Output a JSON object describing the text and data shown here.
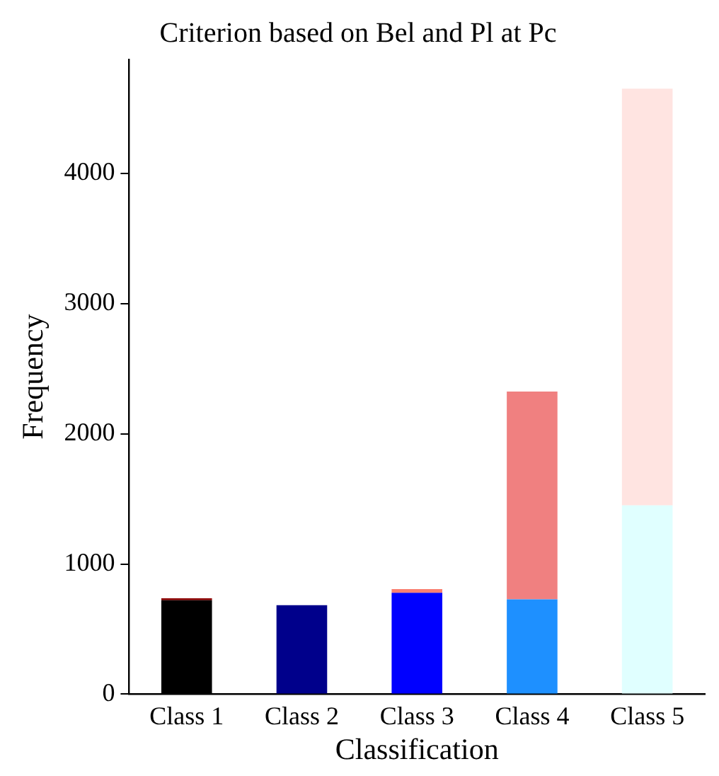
{
  "chart_data": {
    "type": "bar",
    "title": "Criterion based on Bel and Pl at Pc",
    "xlabel": "Classification",
    "ylabel": "Frequency",
    "categories": [
      "Class 1",
      "Class 2",
      "Class 3",
      "Class 4",
      "Class 5"
    ],
    "stacked": true,
    "series": [
      {
        "colors": [
          "#000000",
          "#00008b",
          "#0000ff",
          "#1e90ff",
          "#e0ffff"
        ],
        "values": [
          722,
          683,
          779,
          728,
          1450
        ]
      },
      {
        "colors": [
          "#8b0000",
          "#8b0000",
          "#fa8072",
          "#f08080",
          "#ffe4e1"
        ],
        "values": [
          14,
          0,
          28,
          1597,
          3200
        ]
      }
    ],
    "ylim": [
      0,
      4875
    ],
    "yticks": [
      0,
      1000,
      2000,
      3000,
      4000
    ],
    "grid": false,
    "legend": false
  }
}
